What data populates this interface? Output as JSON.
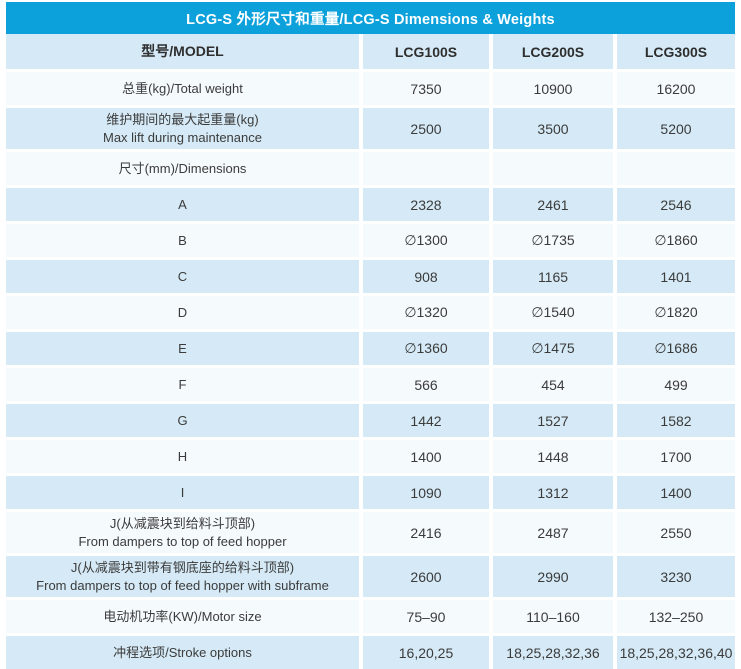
{
  "colors": {
    "title_bg": "#0DA1DC",
    "title_text": "#FFFFFF",
    "row_blue": "#D5EAF6",
    "row_white": "#F5FAFC",
    "text_dark": "#3B3B3B"
  },
  "table": {
    "title": "LCG-S 外形尺寸和重量/LCG-S Dimensions & Weights",
    "header": {
      "label": "型号/MODEL",
      "columns": [
        "LCG100S",
        "LCG200S",
        "LCG300S"
      ]
    },
    "rows": [
      {
        "label": "总重(kg)/Total weight",
        "values": [
          "7350",
          "10900",
          "16200"
        ]
      },
      {
        "label": "维护期间的最大起重量(kg)\nMax lift during maintenance",
        "values": [
          "2500",
          "3500",
          "5200"
        ]
      },
      {
        "label": "尺寸(mm)/Dimensions",
        "values": [
          "",
          "",
          ""
        ]
      },
      {
        "label": "A",
        "values": [
          "2328",
          "2461",
          "2546"
        ]
      },
      {
        "label": "B",
        "values": [
          "∅1300",
          "∅1735",
          "∅1860"
        ]
      },
      {
        "label": "C",
        "values": [
          "908",
          "1165",
          "1401"
        ]
      },
      {
        "label": "D",
        "values": [
          "∅1320",
          "∅1540",
          "∅1820"
        ]
      },
      {
        "label": "E",
        "values": [
          "∅1360",
          "∅1475",
          "∅1686"
        ]
      },
      {
        "label": "F",
        "values": [
          "566",
          "454",
          "499"
        ]
      },
      {
        "label": "G",
        "values": [
          "1442",
          "1527",
          "1582"
        ]
      },
      {
        "label": "H",
        "values": [
          "1400",
          "1448",
          "1700"
        ]
      },
      {
        "label": "I",
        "values": [
          "1090",
          "1312",
          "1400"
        ]
      },
      {
        "label": "J(从减震块到给料斗顶部)\nFrom dampers to top of feed hopper",
        "values": [
          "2416",
          "2487",
          "2550"
        ]
      },
      {
        "label": "J(从减震块到带有钢底座的给料斗顶部)\nFrom dampers to top of feed hopper with subframe",
        "values": [
          "2600",
          "2990",
          "3230"
        ]
      },
      {
        "label": "电动机功率(KW)/Motor size",
        "values": [
          "75–90",
          "110–160",
          "132–250"
        ]
      },
      {
        "label": "冲程选项/Stroke options",
        "values": [
          "16,20,25",
          "18,25,28,32,36",
          "18,25,28,32,36,40"
        ]
      }
    ]
  }
}
